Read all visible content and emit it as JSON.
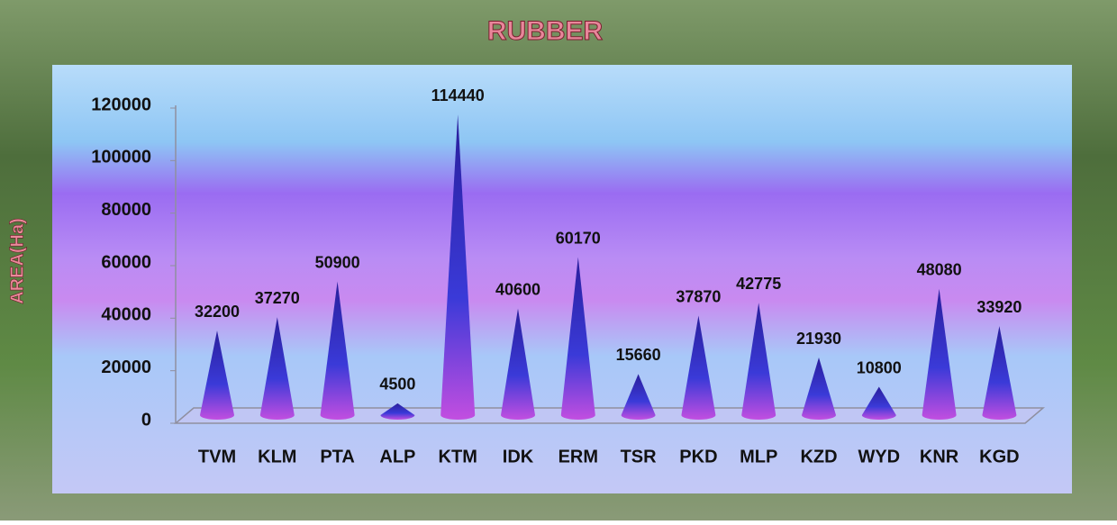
{
  "chart_data": {
    "type": "cone",
    "title": "RUBBER",
    "y_label": "AREA(Ha)",
    "categories": [
      "TVM",
      "KLM",
      "PTA",
      "ALP",
      "KTM",
      "IDK",
      "ERM",
      "TSR",
      "PKD",
      "MLP",
      "KZD",
      "WYD",
      "KNR",
      "KGD"
    ],
    "values": [
      32200,
      37270,
      50900,
      4500,
      114440,
      40600,
      60170,
      15660,
      37870,
      42775,
      21930,
      10800,
      48080,
      33920
    ],
    "ylim": [
      0,
      120000
    ],
    "yticks": [
      0,
      20000,
      40000,
      60000,
      80000,
      100000,
      120000
    ],
    "colors": [
      "#2a1f9c",
      "#c24ee0"
    ]
  }
}
